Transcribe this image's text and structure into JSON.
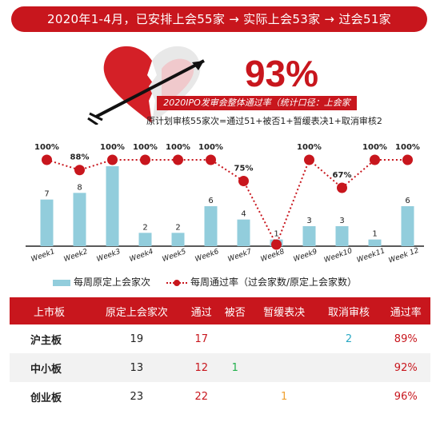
{
  "banner": "2020年1-4月，已安排上会55家 → 实际上会53家 → 过会51家",
  "headline": {
    "percent": "93%",
    "subtitle": "2020IPO发审会整体通过率（统计口径：上会家次）",
    "formula": "原计划审核55家次=通过51+被否1+暂缓表决1+取消审核2"
  },
  "colors": {
    "accent": "#c8161d",
    "bar": "#92cddc",
    "heart_light": "#f4b3b8",
    "heart_grey": "#d9d9d9"
  },
  "legend": {
    "bars": "每周原定上会家次",
    "line": "每周通过率（过会家数/原定上会家数）"
  },
  "chart_data": {
    "type": "bar",
    "categories": [
      "Week1",
      "Week2",
      "Week3",
      "Week4",
      "Week5",
      "Week6",
      "Week7",
      "Week8",
      "Week9",
      "Week10",
      "Week11",
      "Week 12"
    ],
    "series": [
      {
        "name": "每周原定上会家次",
        "type": "bar",
        "values": [
          7,
          8,
          12,
          2,
          2,
          6,
          4,
          1,
          3,
          3,
          1,
          6
        ]
      },
      {
        "name": "每周通过率（过会家数/原定上会家数）",
        "type": "line",
        "values": [
          100,
          88,
          100,
          100,
          100,
          100,
          75,
          0,
          100,
          67,
          100,
          100
        ],
        "labels": [
          "100%",
          "88%",
          "100%",
          "100%",
          "100%",
          "100%",
          "75%",
          "",
          "100%",
          "67%",
          "100%",
          "100%"
        ]
      }
    ],
    "ylim_bars": [
      0,
      12
    ],
    "ylim_rate": [
      0,
      100
    ],
    "grid": false,
    "legend_position": "bottom"
  },
  "table": {
    "headers": [
      "上市板",
      "原定上会家次",
      "通过",
      "被否",
      "暂缓表决",
      "取消审核",
      "通过率"
    ],
    "rows": [
      {
        "name": "沪主板",
        "planned": "19",
        "passed": "17",
        "rejected": "",
        "deferred": "",
        "cancelled": "2",
        "rate": "89%"
      },
      {
        "name": "中小板",
        "planned": "13",
        "passed": "12",
        "rejected": "1",
        "deferred": "",
        "cancelled": "",
        "rate": "92%"
      },
      {
        "name": "创业板",
        "planned": "23",
        "passed": "22",
        "rejected": "",
        "deferred": "1",
        "cancelled": "",
        "rate": "96%"
      }
    ]
  }
}
